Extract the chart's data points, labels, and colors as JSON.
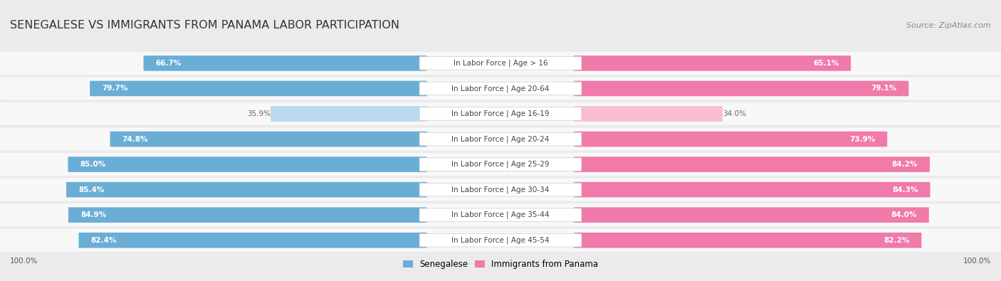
{
  "title": "SENEGALESE VS IMMIGRANTS FROM PANAMA LABOR PARTICIPATION",
  "source": "Source: ZipAtlas.com",
  "categories": [
    "In Labor Force | Age > 16",
    "In Labor Force | Age 20-64",
    "In Labor Force | Age 16-19",
    "In Labor Force | Age 20-24",
    "In Labor Force | Age 25-29",
    "In Labor Force | Age 30-34",
    "In Labor Force | Age 35-44",
    "In Labor Force | Age 45-54"
  ],
  "senegalese_values": [
    66.7,
    79.7,
    35.9,
    74.8,
    85.0,
    85.4,
    84.9,
    82.4
  ],
  "panama_values": [
    65.1,
    79.1,
    34.0,
    73.9,
    84.2,
    84.3,
    84.0,
    82.2
  ],
  "senegalese_color": "#6aaed6",
  "senegalese_light_color": "#b8d9ee",
  "panama_color": "#f07aaa",
  "panama_light_color": "#f8bdd4",
  "background_color": "#ebebeb",
  "row_bg_color": "#f8f8f8",
  "bar_max": 100.0,
  "title_fontsize": 11.5,
  "source_fontsize": 8,
  "label_fontsize": 7.5,
  "value_fontsize": 7.5,
  "legend_fontsize": 8.5,
  "axis_label_fontsize": 7.5
}
